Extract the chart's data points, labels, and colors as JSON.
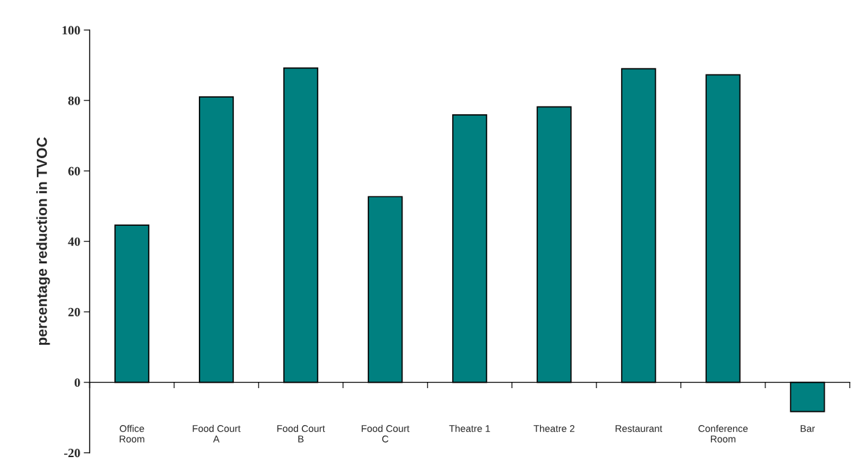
{
  "chart_data": {
    "type": "bar",
    "categories": [
      "Office\nRoom",
      "Food Court\nA",
      "Food Court\nB",
      "Food Court\nC",
      "Theatre 1",
      "Theatre 2",
      "Restaurant",
      "Conference\nRoom",
      "Bar"
    ],
    "values": [
      44.6,
      81,
      89.2,
      52.7,
      75.9,
      78.2,
      89,
      87.3,
      -8.3
    ],
    "color": "#008080",
    "ylabel": "percentage reduction in TVOC",
    "ylim": [
      -20,
      100
    ],
    "yticks": [
      -20,
      0,
      20,
      40,
      60,
      80,
      100
    ],
    "legend": false
  }
}
